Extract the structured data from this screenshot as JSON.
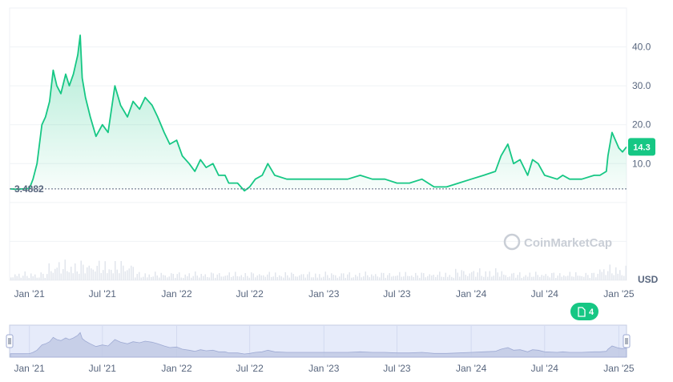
{
  "chart_data": {
    "type": "area",
    "currency": "USD",
    "start_marker": "3.4882",
    "current_price": "14.3",
    "y_ticks": [
      "40.0",
      "30.0",
      "20.0",
      "10.0"
    ],
    "x_ticks": [
      "Jan '21",
      "Jul '21",
      "Jan '22",
      "Jul '22",
      "Jan '23",
      "Jul '23",
      "Jan '24",
      "Jul '24",
      "Jan '25"
    ],
    "ylim": [
      -20,
      50
    ],
    "xlim": [
      "2020-11-13",
      "2025-01-20"
    ],
    "grid": true,
    "series": [
      {
        "x": [
          "2020-11-15",
          "2020-12-01",
          "2020-12-15",
          "2021-01-01",
          "2021-01-10",
          "2021-01-20",
          "2021-02-01",
          "2021-02-10",
          "2021-02-20",
          "2021-03-01",
          "2021-03-10",
          "2021-03-20",
          "2021-04-01",
          "2021-04-10",
          "2021-04-20",
          "2021-05-01",
          "2021-05-07",
          "2021-05-12",
          "2021-05-20",
          "2021-06-01",
          "2021-06-15",
          "2021-07-01",
          "2021-07-15",
          "2021-08-01",
          "2021-08-15",
          "2021-09-01",
          "2021-09-15",
          "2021-10-01",
          "2021-10-15",
          "2021-11-01",
          "2021-11-15",
          "2021-12-01",
          "2021-12-15",
          "2022-01-01",
          "2022-01-15",
          "2022-02-01",
          "2022-02-15",
          "2022-03-01",
          "2022-03-15",
          "2022-04-01",
          "2022-04-15",
          "2022-05-01",
          "2022-05-10",
          "2022-06-01",
          "2022-06-18",
          "2022-07-01",
          "2022-07-15",
          "2022-08-01",
          "2022-08-15",
          "2022-09-01",
          "2022-10-01",
          "2022-11-01",
          "2022-12-01",
          "2023-01-01",
          "2023-02-01",
          "2023-03-01",
          "2023-04-01",
          "2023-05-01",
          "2023-06-01",
          "2023-07-01",
          "2023-08-01",
          "2023-09-01",
          "2023-10-01",
          "2023-11-01",
          "2023-12-01",
          "2024-01-01",
          "2024-02-01",
          "2024-03-01",
          "2024-03-15",
          "2024-04-01",
          "2024-04-15",
          "2024-05-01",
          "2024-05-20",
          "2024-06-01",
          "2024-06-15",
          "2024-07-01",
          "2024-08-01",
          "2024-08-15",
          "2024-09-01",
          "2024-10-01",
          "2024-11-01",
          "2024-11-15",
          "2024-12-01",
          "2024-12-05",
          "2024-12-15",
          "2025-01-01",
          "2025-01-10",
          "2025-01-20"
        ],
        "y": [
          3.5,
          3.4,
          3.5,
          3.6,
          6,
          10,
          20,
          22,
          26,
          34,
          30,
          28,
          33,
          30,
          33,
          38,
          43,
          32,
          27,
          22,
          17,
          20,
          18,
          30,
          25,
          22,
          26,
          24,
          27,
          25,
          22,
          18,
          15,
          16,
          12,
          10,
          8,
          11,
          9,
          10,
          7,
          7,
          5,
          5,
          3,
          4,
          6,
          7,
          10,
          7,
          6,
          6,
          6,
          6,
          6,
          6,
          7,
          6,
          6,
          5,
          5,
          6,
          4,
          4,
          5,
          6,
          7,
          8,
          12,
          15,
          10,
          11,
          7,
          11,
          10,
          7,
          6,
          7,
          6,
          6,
          7,
          7,
          8,
          12,
          18,
          14,
          13,
          14.3
        ]
      }
    ]
  },
  "watermark": {
    "text": "CoinMarketCap"
  },
  "events_badge": {
    "count": "4"
  },
  "colors": {
    "line": "#16c784",
    "grid": "#eff2f5",
    "text": "#58667e",
    "navigator_bg": "#e6ebfa",
    "navigator_border": "#c5cde3"
  }
}
